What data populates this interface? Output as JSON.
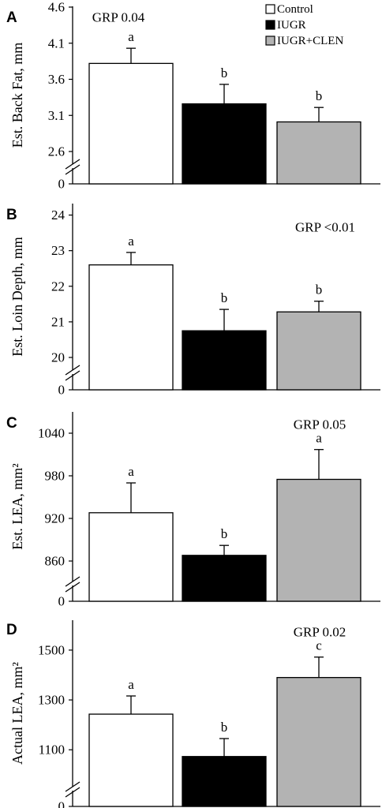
{
  "legend": {
    "items": [
      "Control",
      "IUGR",
      "IUGR+CLEN"
    ],
    "colors": [
      "#ffffff",
      "#000000",
      "#b3b3b3"
    ]
  },
  "chart_data": [
    {
      "type": "bar",
      "panel": "A",
      "ylabel": "Est. Back Fat, mm",
      "categories": [
        "Control",
        "IUGR",
        "IUGR+CLEN"
      ],
      "values": [
        3.82,
        3.26,
        3.01
      ],
      "errors": [
        0.21,
        0.27,
        0.2
      ],
      "letters": [
        "a",
        "b",
        "b"
      ],
      "annotation": "GRP  0.04",
      "ylim": [
        2.6,
        4.6
      ],
      "yticks": [
        2.6,
        3.1,
        3.6,
        4.1,
        4.6
      ],
      "axis_break": true,
      "zero_label": "0",
      "colors": [
        "#ffffff",
        "#000000",
        "#b3b3b3"
      ]
    },
    {
      "type": "bar",
      "panel": "B",
      "ylabel": "Est. Loin Depth, mm",
      "categories": [
        "Control",
        "IUGR",
        "IUGR+CLEN"
      ],
      "values": [
        22.6,
        20.75,
        21.28
      ],
      "errors": [
        0.35,
        0.6,
        0.3
      ],
      "letters": [
        "a",
        "b",
        "b"
      ],
      "annotation": "GRP  <0.01",
      "ylim": [
        20,
        24.5
      ],
      "yticks": [
        20,
        21,
        22,
        23,
        24
      ],
      "axis_break": true,
      "zero_label": "0",
      "colors": [
        "#ffffff",
        "#000000",
        "#b3b3b3"
      ]
    },
    {
      "type": "bar",
      "panel": "C",
      "ylabel": "Est. LEA, mm²",
      "categories": [
        "Control",
        "IUGR",
        "IUGR+CLEN"
      ],
      "values": [
        928,
        868,
        975
      ],
      "errors": [
        42,
        14,
        42
      ],
      "letters": [
        "a",
        "b",
        "a"
      ],
      "annotation": "GRP  0.05",
      "ylim": [
        860,
        1070
      ],
      "yticks": [
        860,
        920,
        980,
        1040
      ],
      "axis_break": true,
      "zero_label": "0",
      "colors": [
        "#ffffff",
        "#000000",
        "#b3b3b3"
      ]
    },
    {
      "type": "bar",
      "panel": "D",
      "ylabel": "Actual LEA, mm²",
      "categories": [
        "Control",
        "IUGR",
        "IUGR+CLEN"
      ],
      "values": [
        1243,
        1073,
        1390
      ],
      "errors": [
        73,
        72,
        82
      ],
      "letters": [
        "a",
        "b",
        "c"
      ],
      "annotation": "GRP  0.02",
      "ylim": [
        1050,
        1620
      ],
      "yticks": [
        1100,
        1300,
        1500
      ],
      "axis_break": true,
      "zero_label": "0",
      "colors": [
        "#ffffff",
        "#000000",
        "#b3b3b3"
      ]
    }
  ]
}
